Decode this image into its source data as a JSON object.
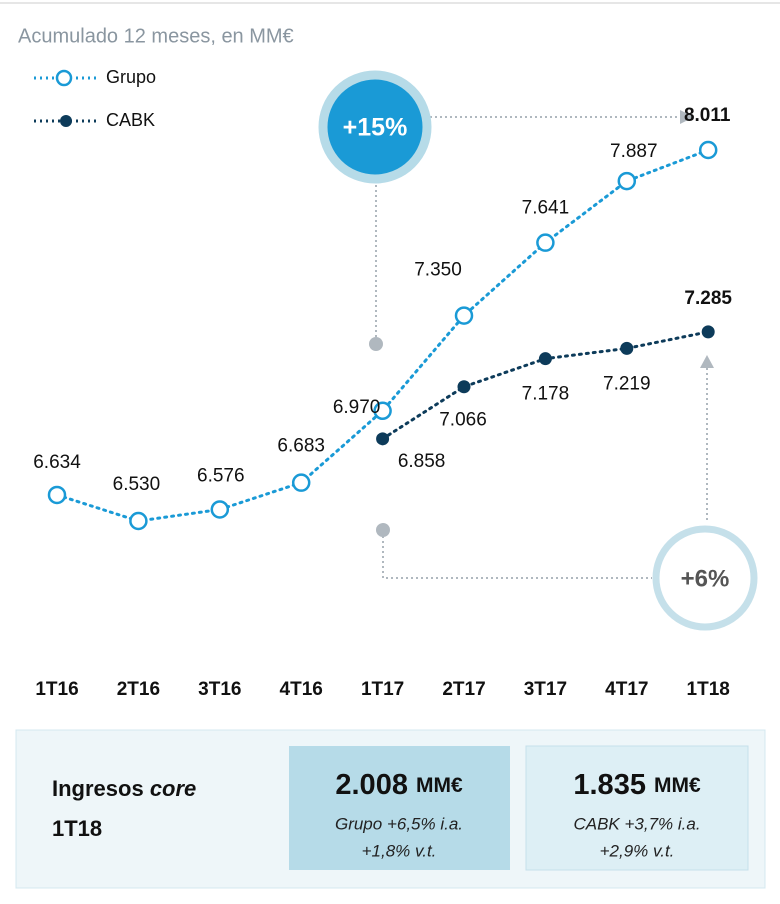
{
  "chart_data": {
    "type": "line",
    "title": "Acumulado 12 meses, en MM€",
    "categories": [
      "1T16",
      "2T16",
      "3T16",
      "4T16",
      "1T17",
      "2T17",
      "3T17",
      "4T17",
      "1T18"
    ],
    "series": [
      {
        "name": "Grupo",
        "color": "#1a9ad6",
        "values": [
          6634,
          6530,
          6576,
          6683,
          6970,
          7350,
          7641,
          7887,
          8011
        ],
        "value_labels": [
          "6.634",
          "6.530",
          "6.576",
          "6.683",
          "6.970",
          "7.350",
          "7.641",
          "7.887",
          "8.011"
        ]
      },
      {
        "name": "CABK",
        "color": "#0d3b5a",
        "values": [
          null,
          null,
          null,
          null,
          6858,
          7066,
          7178,
          7219,
          7285
        ],
        "value_labels": [
          null,
          null,
          null,
          null,
          "6.858",
          "7.066",
          "7.178",
          "7.219",
          "7.285"
        ]
      }
    ],
    "annotations": [
      "+15%",
      "+6%"
    ],
    "summary": {
      "heading": [
        "Ingresos ",
        "core"
      ],
      "period": "1T18",
      "boxes": [
        {
          "amount": "2.008",
          "unit": "MM€",
          "lines": [
            "Grupo +6,5% i.a.",
            "+1,8% v.t."
          ]
        },
        {
          "amount": "1.835",
          "unit": "MM€",
          "lines": [
            "CABK +3,7% i.a.",
            "+2,9% v.t."
          ]
        }
      ]
    }
  }
}
